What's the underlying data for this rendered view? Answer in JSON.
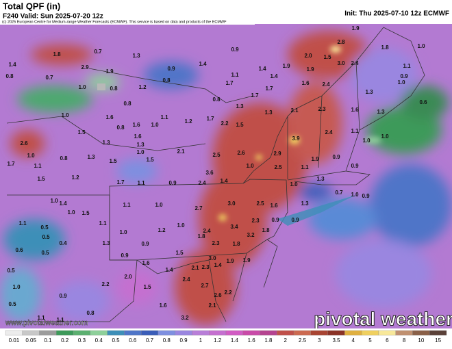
{
  "header": {
    "title": "Total QPF (in)",
    "valid": "F240 Valid: Sun 2025-07-20 12z",
    "init": "Init: Thu 2025-07-10 12z ECMWF",
    "credit": "(c) 2025 European Centre for Medium-range Weather Forecasts (ECMWF). This service is based on data and products of the ECMWF"
  },
  "watermark": {
    "url": "www.pivotalweather.com",
    "logo": "pivotal weather"
  },
  "map_labels": [
    "1.9",
    "2.8",
    "1.8",
    "1.0",
    "1.8",
    "0.7",
    "0.9",
    "1.3",
    "2.0",
    "1.5",
    "1.4",
    "0.8",
    "0.7",
    "2.9",
    "1.9",
    "0.9",
    "1.4",
    "1.1",
    "1.4",
    "1.4",
    "1.9",
    "1.9",
    "3.0",
    "2.4",
    "1.1",
    "1.0",
    "0.9",
    "1.0",
    "0.8",
    "1.2",
    "0.8",
    "1.7",
    "1.7",
    "1.6",
    "2.4",
    "1.3",
    "0.8",
    "1.1",
    "0.8",
    "1.7",
    "1.3",
    "1.3",
    "2.1",
    "2.3",
    "1.6",
    "1.3",
    "0.6",
    "1.6",
    "0.8",
    "1.6",
    "1.0",
    "1.2",
    "1.7",
    "2.2",
    "1.5",
    "1.0",
    "1.5",
    "1.3",
    "2.6",
    "1.0",
    "1.7",
    "1.1",
    "0.8",
    "1.3",
    "1.5",
    "1.6",
    "1.3",
    "1.0",
    "1.5",
    "2.1",
    "2.5",
    "2.6",
    "2.9",
    "3.9",
    "2.4",
    "1.1",
    "1.0",
    "1.0",
    "1.9",
    "0.9",
    "0.9",
    "2.5",
    "1.1",
    "1.0",
    "3.6",
    "2.4",
    "1.4",
    "0.9",
    "1.1",
    "1.7",
    "1.2",
    "1.5",
    "1.0",
    "1.4",
    "1.0",
    "1.3",
    "0.7",
    "1.0",
    "0.9",
    "1.3",
    "1.6",
    "2.5",
    "3.0",
    "2.7",
    "1.0",
    "1.1",
    "1.5",
    "1.0",
    "1.1",
    "0.5",
    "0.5",
    "0.4",
    "0.6",
    "0.5",
    "1.1",
    "1.0",
    "1.2",
    "1.0",
    "2.4",
    "3.4",
    "2.3",
    "0.9",
    "0.9",
    "3.2",
    "1.8",
    "1.8",
    "2.3",
    "1.8",
    "1.3",
    "0.9",
    "1.5",
    "0.9",
    "3.0",
    "1.9",
    "1.9",
    "2.1",
    "2.3",
    "1.4",
    "1.4",
    "1.6",
    "2.0",
    "2.2",
    "0.5",
    "1.0",
    "0.9",
    "2.7",
    "2.6",
    "2.2",
    "2.1",
    "1.6",
    "0.5",
    "1.1",
    "1.1",
    "0.8",
    "3.2",
    "2.4",
    "1.5"
  ],
  "colorbar": [
    {
      "label": "0.01",
      "color": "#ececec"
    },
    {
      "label": "0.05",
      "color": "#c8c8c8"
    },
    {
      "label": "0.1",
      "color": "#9c9c9c"
    },
    {
      "label": "0.2",
      "color": "#3d9a5a"
    },
    {
      "label": "0.3",
      "color": "#5cb070"
    },
    {
      "label": "0.4",
      "color": "#8ed09a"
    },
    {
      "label": "0.5",
      "color": "#3e8fb8"
    },
    {
      "label": "0.6",
      "color": "#4f75c8"
    },
    {
      "label": "0.7",
      "color": "#3a5db8"
    },
    {
      "label": "0.8",
      "color": "#7e8fe0"
    },
    {
      "label": "0.9",
      "color": "#9a86e0"
    },
    {
      "label": "1",
      "color": "#b87ed8"
    },
    {
      "label": "1.2",
      "color": "#c56fd0"
    },
    {
      "label": "1.4",
      "color": "#d25cc4"
    },
    {
      "label": "1.6",
      "color": "#c94aa8"
    },
    {
      "label": "1.8",
      "color": "#b54390"
    },
    {
      "label": "2",
      "color": "#c0504a"
    },
    {
      "label": "2.5",
      "color": "#cc6a50"
    },
    {
      "label": "3",
      "color": "#a84432"
    },
    {
      "label": "3.5",
      "color": "#8a3226"
    },
    {
      "label": "4",
      "color": "#e0b040"
    },
    {
      "label": "5",
      "color": "#f0d060"
    },
    {
      "label": "6",
      "color": "#f8e89a"
    },
    {
      "label": "8",
      "color": "#c09070"
    },
    {
      "label": "10",
      "color": "#8a6048"
    },
    {
      "label": "15",
      "color": "#5a4038"
    }
  ]
}
